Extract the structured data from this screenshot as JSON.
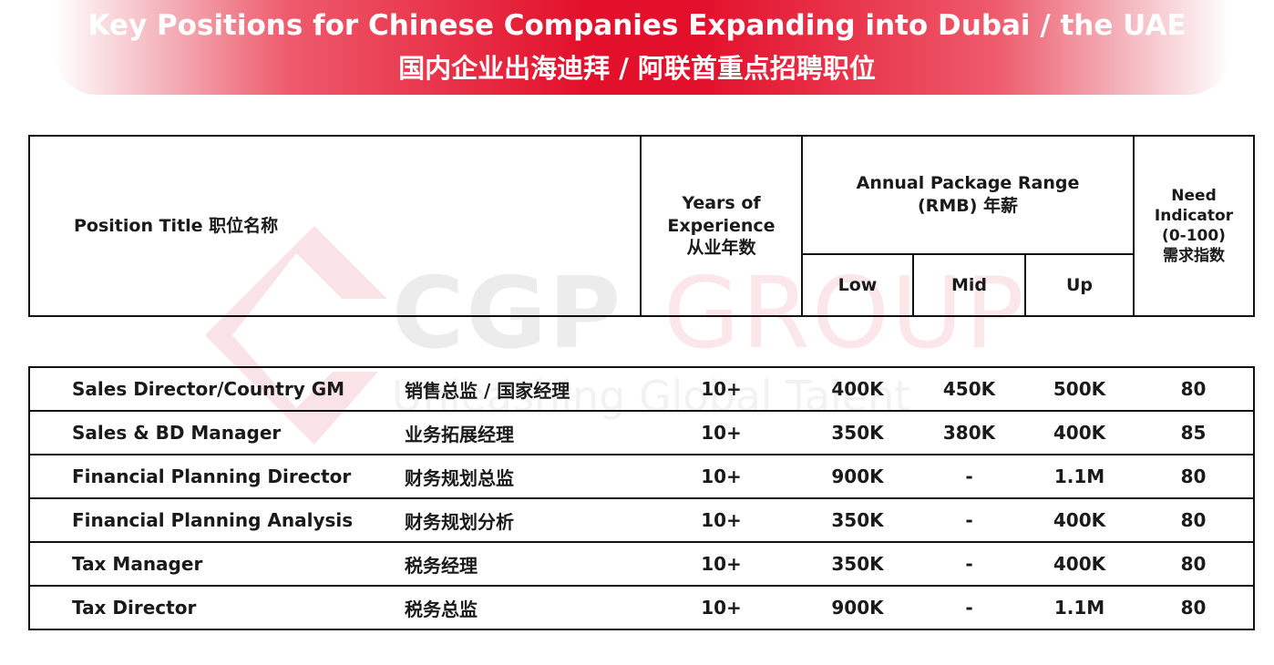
{
  "title": {
    "en": "Key Positions for Chinese Companies Expanding into Dubai / the UAE",
    "zh": "国内企业出海迪拜 / 阿联酋重点招聘职位"
  },
  "watermark": {
    "brand": "CGP",
    "group": "GROUP",
    "slogan": "Unleashing Global Talent"
  },
  "header": {
    "position_title": "Position Title 职位名称",
    "years_en_1": "Years of",
    "years_en_2": "Experience",
    "years_zh": "从业年数",
    "package_en": "Annual Package Range",
    "package_zh": "(RMB) 年薪",
    "low": "Low",
    "mid": "Mid",
    "up": "Up",
    "need_1": "Need",
    "need_2": "Indicator",
    "need_3": "(0-100)",
    "need_zh": "需求指数"
  },
  "rows": [
    {
      "title_en": "Sales Director/Country GM",
      "title_zh": "销售总监 / 国家经理",
      "years": "10+",
      "low": "400K",
      "mid": "450K",
      "up": "500K",
      "need": "80"
    },
    {
      "title_en": "Sales & BD Manager",
      "title_zh": "业务拓展经理",
      "years": "10+",
      "low": "350K",
      "mid": "380K",
      "up": "400K",
      "need": "85"
    },
    {
      "title_en": "Financial Planning Director",
      "title_zh": "财务规划总监",
      "years": "10+",
      "low": "900K",
      "mid": "-",
      "up": "1.1M",
      "need": "80"
    },
    {
      "title_en": "Financial Planning Analysis",
      "title_zh": "财务规划分析",
      "years": "10+",
      "low": "350K",
      "mid": "-",
      "up": "400K",
      "need": "80"
    },
    {
      "title_en": "Tax Manager",
      "title_zh": "税务经理",
      "years": "10+",
      "low": "350K",
      "mid": "-",
      "up": "400K",
      "need": "80"
    },
    {
      "title_en": "Tax Director",
      "title_zh": "税务总监",
      "years": "10+",
      "low": "900K",
      "mid": "-",
      "up": "1.1M",
      "need": "80"
    }
  ],
  "colors": {
    "banner_red": "#e3102b",
    "border": "#111111",
    "text": "#1a1a1a"
  }
}
